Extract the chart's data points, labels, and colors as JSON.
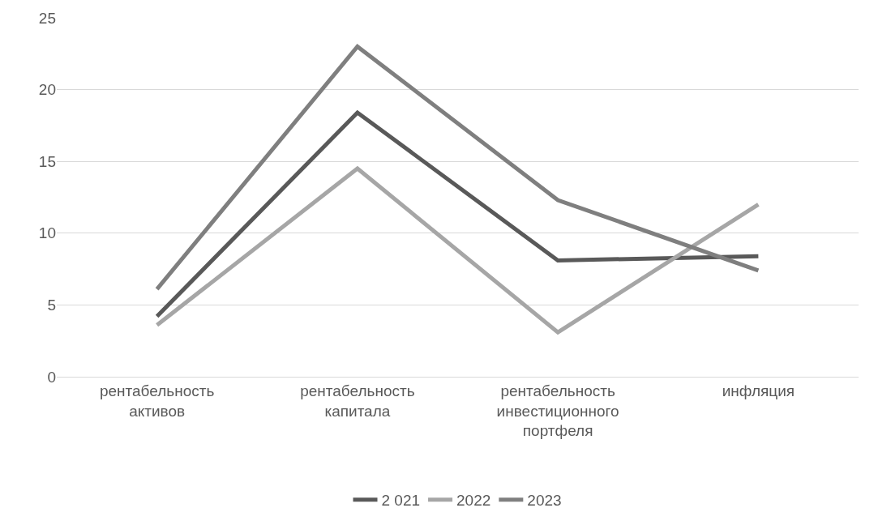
{
  "chart_data": {
    "type": "line",
    "categories": [
      "рентабельность активов",
      "рентабельность капитала",
      "рентабельность инвестиционного портфеля",
      "инфляция"
    ],
    "series": [
      {
        "name": "2 021",
        "color": "#595959",
        "values": [
          4.2,
          18.4,
          8.1,
          8.4
        ]
      },
      {
        "name": "2022",
        "color": "#a6a6a6",
        "values": [
          3.6,
          14.5,
          3.1,
          12.0
        ]
      },
      {
        "name": "2023",
        "color": "#7f7f7f",
        "values": [
          6.1,
          23.0,
          12.3,
          7.4
        ]
      }
    ],
    "ylim": [
      0,
      25
    ],
    "yticks": [
      0,
      5,
      10,
      15,
      20,
      25
    ],
    "grid": "y",
    "legend": "bottom",
    "marker": "none",
    "line_style": "solid"
  }
}
